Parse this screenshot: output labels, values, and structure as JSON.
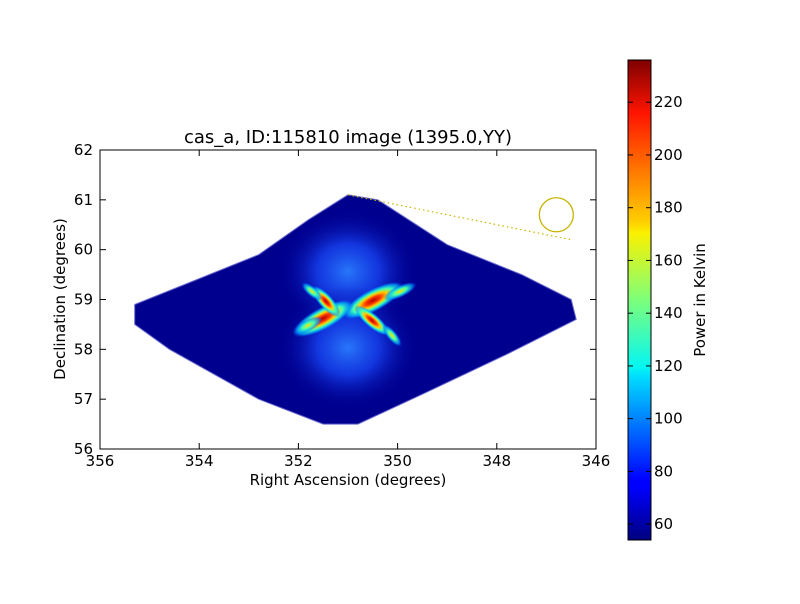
{
  "chart_data": {
    "type": "heatmap",
    "title": "cas_a, ID:115810 image (1395.0,YY)",
    "xlabel": "Right Ascension (degrees)",
    "ylabel": "Declination (degrees)",
    "xlim": [
      356,
      346
    ],
    "ylim": [
      56,
      62
    ],
    "x_ticks": [
      "356",
      "354",
      "352",
      "350",
      "348",
      "346"
    ],
    "y_ticks": [
      "56",
      "57",
      "58",
      "59",
      "60",
      "61",
      "62"
    ],
    "colorbar": {
      "label": "Power in Kelvin",
      "range": [
        54,
        236
      ],
      "ticks": [
        "60",
        "80",
        "100",
        "120",
        "140",
        "160",
        "180",
        "200",
        "220"
      ],
      "tick_values": [
        60,
        80,
        100,
        120,
        140,
        160,
        180,
        200,
        220
      ],
      "colormap": "jet"
    },
    "footprint_vertices_radec": [
      [
        355.3,
        58.9
      ],
      [
        354.3,
        59.3
      ],
      [
        352.8,
        59.9
      ],
      [
        351.8,
        60.6
      ],
      [
        351.0,
        61.1
      ],
      [
        350.4,
        61.0
      ],
      [
        349.0,
        60.1
      ],
      [
        347.5,
        59.5
      ],
      [
        346.5,
        59.0
      ],
      [
        346.4,
        58.6
      ],
      [
        347.8,
        57.9
      ],
      [
        349.5,
        57.1
      ],
      [
        350.8,
        56.5
      ],
      [
        351.5,
        56.5
      ],
      [
        352.8,
        57.0
      ],
      [
        354.6,
        58.0
      ],
      [
        355.3,
        58.5
      ]
    ],
    "source_center_radec": [
      351.0,
      58.8
    ],
    "background_level": 54,
    "peak_level": 236,
    "beam_circle_center_radec": [
      346.8,
      60.7
    ],
    "beam_line_end_radec": [
      346.5,
      60.2
    ],
    "beam_line_start_radec": [
      351.0,
      61.1
    ],
    "colors": {
      "background_map": "#00008f",
      "beam_marker": "#c8b400"
    }
  }
}
